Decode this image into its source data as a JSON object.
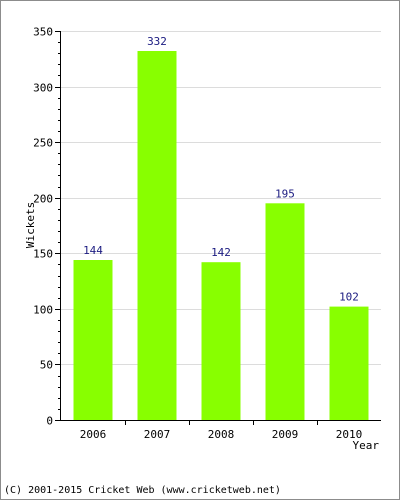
{
  "chart_data": {
    "type": "bar",
    "categories": [
      "2006",
      "2007",
      "2008",
      "2009",
      "2010"
    ],
    "values": [
      144,
      332,
      142,
      195,
      102
    ],
    "title": "",
    "xlabel": "Year",
    "ylabel": "Wickets",
    "ylim": [
      0,
      350
    ],
    "yticks": [
      0,
      50,
      100,
      150,
      200,
      250,
      300,
      350
    ],
    "grid": true,
    "legend": "none",
    "bar_color": "#88ff00",
    "value_label_color": "#1a1a80"
  },
  "footer": "(C) 2001-2015 Cricket Web (www.cricketweb.net)"
}
